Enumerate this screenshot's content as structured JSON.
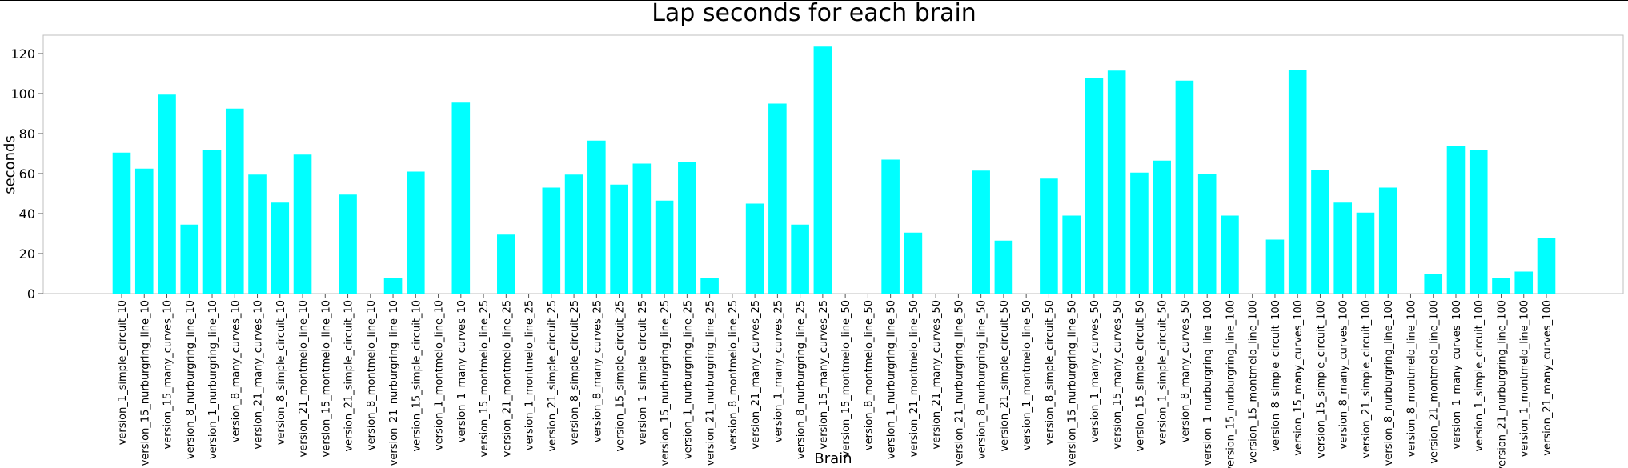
{
  "chart_data": {
    "type": "bar",
    "title": "Lap seconds for each brain",
    "xlabel": "Brain",
    "ylabel": "seconds",
    "ylim": [
      0,
      130
    ],
    "yticks": [
      0,
      20,
      40,
      60,
      80,
      100,
      120
    ],
    "grid": false,
    "bar_color": "#00FFFF",
    "categories": [
      "version_1_simple_circuit_10",
      "version_15_nurburgring_line_10",
      "version_15_many_curves_10",
      "version_8_nurburgring_line_10",
      "version_1_nurburgring_line_10",
      "version_8_many_curves_10",
      "version_21_many_curves_10",
      "version_8_simple_circuit_10",
      "version_21_montmelo_line_10",
      "version_15_montmelo_line_10",
      "version_21_simple_circuit_10",
      "version_8_montmelo_line_10",
      "version_21_nurburgring_line_10",
      "version_15_simple_circuit_10",
      "version_1_montmelo_line_10",
      "version_1_many_curves_10",
      "version_15_montmelo_line_25",
      "version_21_montmelo_line_25",
      "version_1_montmelo_line_25",
      "version_21_simple_circuit_25",
      "version_8_simple_circuit_25",
      "version_8_many_curves_25",
      "version_15_simple_circuit_25",
      "version_1_simple_circuit_25",
      "version_15_nurburgring_line_25",
      "version_1_nurburgring_line_25",
      "version_21_nurburgring_line_25",
      "version_8_montmelo_line_25",
      "version_21_many_curves_25",
      "version_1_many_curves_25",
      "version_8_nurburgring_line_25",
      "version_15_many_curves_25",
      "version_15_montmelo_line_50",
      "version_8_montmelo_line_50",
      "version_1_nurburgring_line_50",
      "version_21_montmelo_line_50",
      "version_21_many_curves_50",
      "version_21_nurburgring_line_50",
      "version_8_nurburgring_line_50",
      "version_21_simple_circuit_50",
      "version_1_montmelo_line_50",
      "version_8_simple_circuit_50",
      "version_15_nurburgring_line_50",
      "version_1_many_curves_50",
      "version_15_many_curves_50",
      "version_15_simple_circuit_50",
      "version_1_simple_circuit_50",
      "version_8_many_curves_50",
      "version_1_nurburgring_line_100",
      "version_15_nurburgring_line_100",
      "version_15_montmelo_line_100",
      "version_8_simple_circuit_100",
      "version_15_many_curves_100",
      "version_15_simple_circuit_100",
      "version_8_many_curves_100",
      "version_21_simple_circuit_100",
      "version_8_nurburgring_line_100",
      "version_8_montmelo_line_100",
      "version_21_montmelo_line_100",
      "version_1_many_curves_100",
      "version_1_simple_circuit_100",
      "version_21_nurburgring_line_100",
      "version_1_montmelo_line_100",
      "version_21_many_curves_100"
    ],
    "values": [
      70.5,
      62.5,
      99.5,
      34.5,
      72,
      92.5,
      59.5,
      45.5,
      69.5,
      0,
      49.5,
      0,
      8,
      61,
      0,
      95.5,
      0,
      29.5,
      0,
      53,
      59.5,
      76.5,
      54.5,
      65,
      46.5,
      66,
      8,
      0,
      45,
      95,
      34.5,
      123.5,
      0,
      0,
      67,
      30.5,
      0,
      0,
      61.5,
      26.5,
      0,
      57.5,
      39,
      108,
      111.5,
      60.5,
      66.5,
      106.5,
      60,
      39,
      0,
      27,
      112,
      62,
      45.5,
      40.5,
      53,
      0,
      10,
      74,
      72,
      8,
      11,
      28
    ]
  }
}
